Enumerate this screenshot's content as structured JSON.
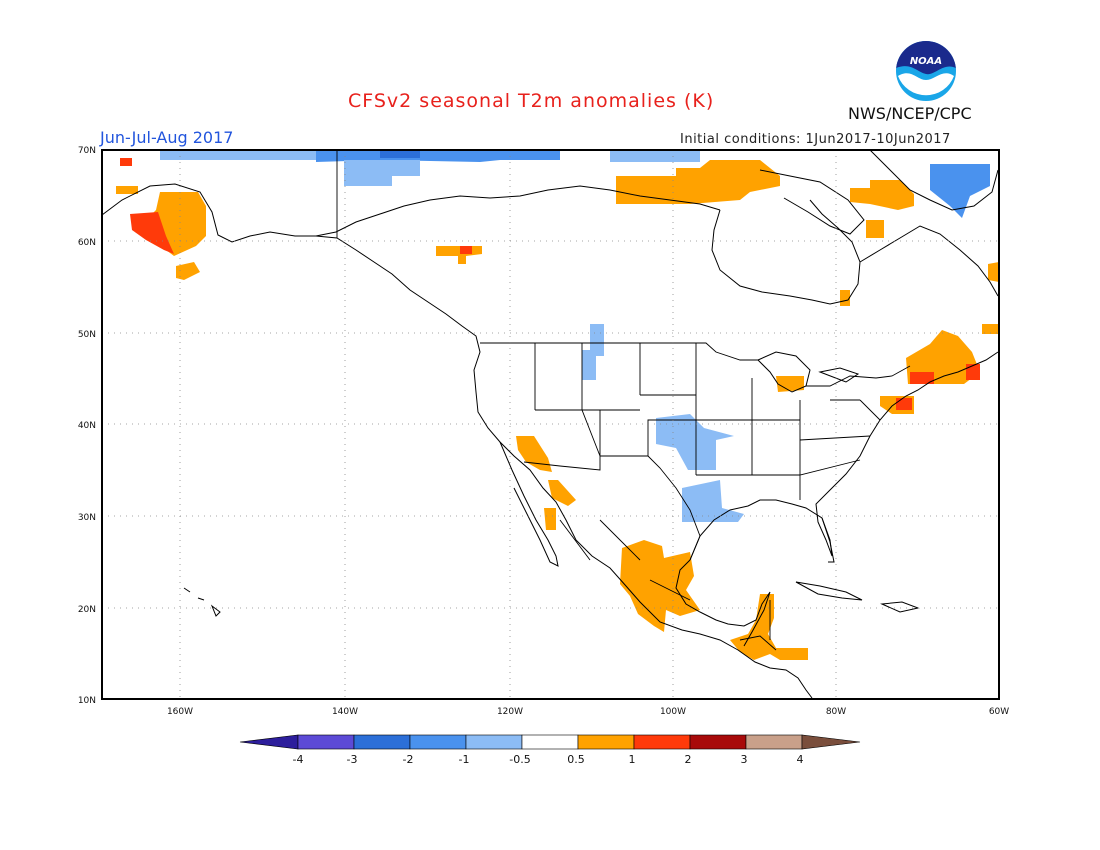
{
  "header": {
    "title": "CFSv2 seasonal T2m anomalies (K)",
    "season": "Jun-Jul-Aug 2017",
    "initial_conditions": "Initial conditions: 1Jun2017-10Jun2017",
    "agency": "NWS/NCEP/CPC",
    "logo_text": "NOAA"
  },
  "map": {
    "lon_range": [
      -170,
      -60
    ],
    "lat_range": [
      10,
      70
    ],
    "lon_labels": [
      "160W",
      "140W",
      "120W",
      "100W",
      "80W",
      "60W"
    ],
    "lat_labels": [
      "70N",
      "60N",
      "50N",
      "40N",
      "30N",
      "20N",
      "10N"
    ],
    "grid": true
  },
  "colorbar": {
    "labels": [
      "-4",
      "-3",
      "-2",
      "-1",
      "-0.5",
      "0.5",
      "1",
      "2",
      "3",
      "4"
    ],
    "colors": [
      "#2d1e9c",
      "#5c4ad6",
      "#2c6fd8",
      "#4a92ee",
      "#8cbcf5",
      "#ffffff",
      "#ffa200",
      "#ff3a0a",
      "#a80a0a",
      "#c9a08a",
      "#7a4e3c"
    ]
  },
  "anomaly_colors": {
    "warm_05_1": "#ffa200",
    "warm_1_2": "#ff3a0a",
    "cool_05_1": "#8cbcf5",
    "cool_1_2": "#4a92ee",
    "cool_2_3": "#2c6fd8"
  }
}
